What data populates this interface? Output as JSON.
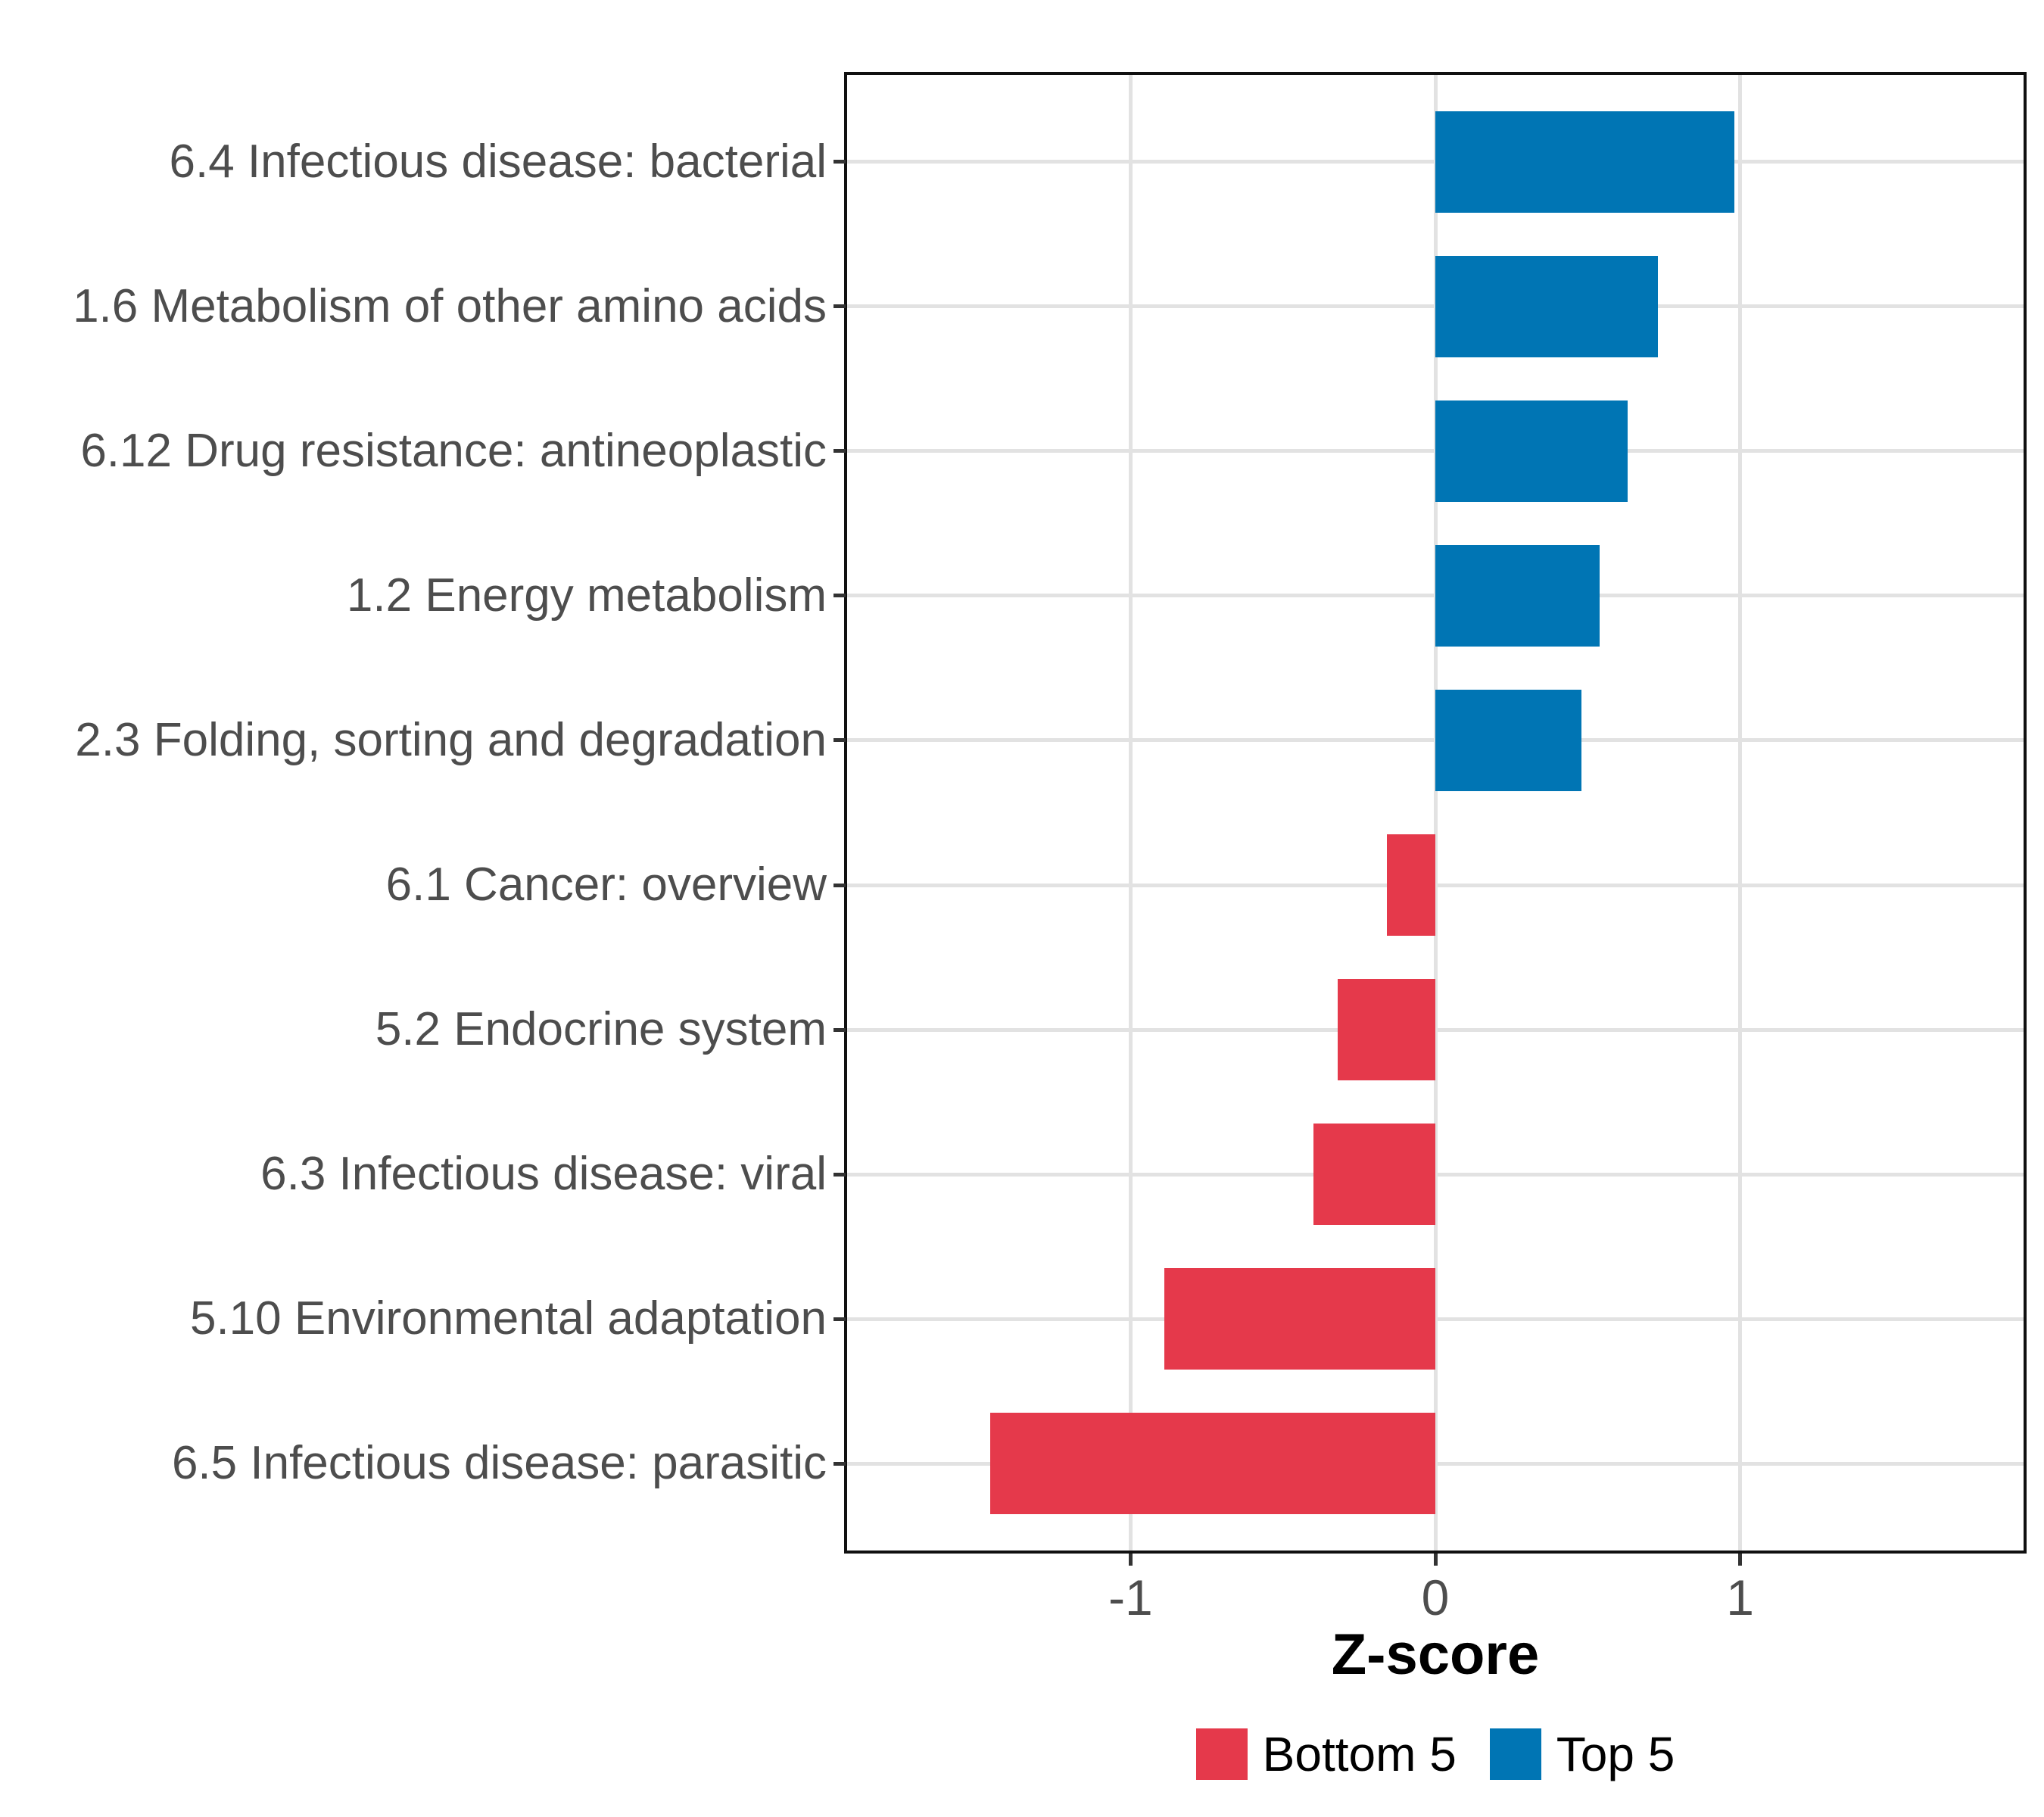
{
  "figure": {
    "background_color": "#FFFFFF",
    "panel_border_color": "#101010",
    "gridline_color": "#E2E2E2",
    "axis_text_color": "#4D4D4D",
    "tick_mark_color": "#333333"
  },
  "chart_data": {
    "type": "bar",
    "orientation": "horizontal",
    "title": "",
    "xlabel": "Z-score",
    "ylabel": "",
    "grid": "major",
    "legend_position": "bottom",
    "xlim": [
      -1.93,
      1.93
    ],
    "xticks": [
      -1,
      0,
      1
    ],
    "xtick_labels": [
      "-1",
      "0",
      "1"
    ],
    "categories": [
      "6.4 Infectious disease: bacterial",
      "1.6 Metabolism of other amino acids",
      "6.12 Drug resistance: antineoplastic",
      "1.2 Energy metabolism",
      "2.3 Folding, sorting and degradation",
      "6.1 Cancer: overview",
      "5.2 Endocrine system",
      "6.3 Infectious disease: viral",
      "5.10 Environmental adaptation",
      "6.5 Infectious disease: parasitic"
    ],
    "values": [
      0.98,
      0.73,
      0.63,
      0.54,
      0.48,
      -0.16,
      -0.32,
      -0.4,
      -0.89,
      -1.46
    ],
    "groups": [
      "Top 5",
      "Top 5",
      "Top 5",
      "Top 5",
      "Top 5",
      "Bottom 5",
      "Bottom 5",
      "Bottom 5",
      "Bottom 5",
      "Bottom 5"
    ],
    "legend": [
      {
        "label": "Bottom 5",
        "color": "#E5394B"
      },
      {
        "label": "Top 5",
        "color": "#0075B4"
      }
    ]
  }
}
